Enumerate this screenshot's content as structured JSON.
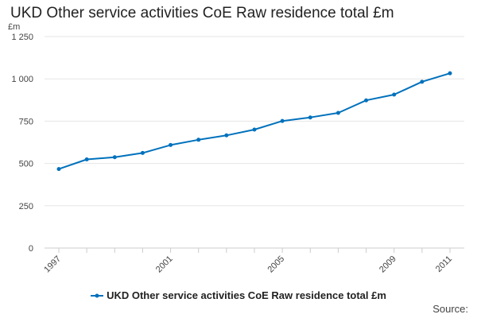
{
  "title": "UKD Other service activities CoE Raw residence total £m",
  "source_label": "Source:",
  "legend": {
    "label": "UKD Other service activities CoE Raw residence total £m"
  },
  "colors": {
    "series": "#0071bc",
    "grid": "#e6e6e6",
    "axis": "#cccccc",
    "text": "#444444"
  },
  "chart_data": {
    "type": "line",
    "title": "UKD Other service activities CoE Raw residence total £m",
    "ylabel": "£m",
    "xlabel": "",
    "x": [
      1997,
      1998,
      1999,
      2000,
      2001,
      2002,
      2003,
      2004,
      2005,
      2006,
      2007,
      2008,
      2009,
      2010,
      2011
    ],
    "x_tick_labels": [
      "1997",
      "2001",
      "2005",
      "2009",
      "2011"
    ],
    "ylim": [
      0,
      1250
    ],
    "y_ticks": [
      0,
      250,
      500,
      750,
      1000,
      1250
    ],
    "y_tick_labels": [
      "0",
      "250",
      "500",
      "750",
      "1 000",
      "1 250"
    ],
    "grid": true,
    "legend_position": "bottom",
    "series": [
      {
        "name": "UKD Other service activities CoE Raw residence total £m",
        "values": [
          467,
          524,
          537,
          562,
          609,
          640,
          666,
          700,
          751,
          772,
          799,
          873,
          907,
          983,
          1033
        ]
      }
    ]
  }
}
